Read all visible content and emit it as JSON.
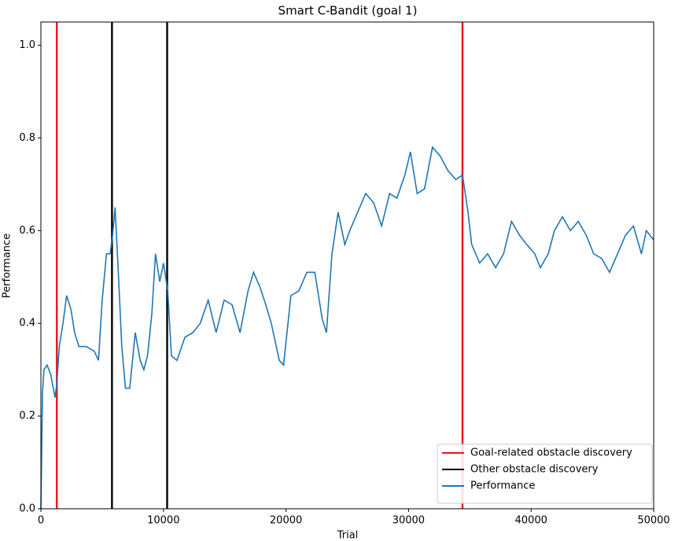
{
  "chart_data": {
    "type": "line",
    "title": "Smart C-Bandit (goal 1)",
    "xlabel": "Trial",
    "ylabel": "Performance",
    "x": [
      0,
      130,
      250,
      500,
      800,
      1150,
      1300,
      1500,
      1800,
      2100,
      2450,
      2750,
      3100,
      3700,
      4350,
      4700,
      5000,
      5350,
      5650,
      5850,
      6050,
      6300,
      6600,
      6900,
      7250,
      7700,
      8100,
      8400,
      8700,
      9050,
      9350,
      9700,
      10000,
      10350,
      10650,
      11100,
      11750,
      12400,
      13000,
      13650,
      14300,
      14950,
      15600,
      16250,
      16900,
      17350,
      17850,
      18350,
      18800,
      19450,
      19800,
      20400,
      21050,
      21700,
      22350,
      22950,
      23300,
      23750,
      24250,
      24800,
      25200,
      25850,
      26500,
      27150,
      27800,
      28450,
      29050,
      29700,
      30150,
      30700,
      31300,
      31950,
      32600,
      33200,
      33850,
      34400,
      34850,
      35150,
      35800,
      36450,
      37100,
      37750,
      38400,
      39050,
      39650,
      40300,
      40750,
      41400,
      41900,
      42550,
      43200,
      43850,
      44500,
      45100,
      45750,
      46400,
      47050,
      47700,
      48350,
      49000,
      49400,
      50000
    ],
    "series": [
      {
        "name": "Performance",
        "color": "#1f77b4",
        "values": [
          0,
          0.25,
          0.3,
          0.31,
          0.29,
          0.24,
          0.27,
          0.35,
          0.4,
          0.46,
          0.43,
          0.38,
          0.35,
          0.35,
          0.34,
          0.32,
          0.45,
          0.55,
          0.55,
          0.59,
          0.65,
          0.52,
          0.35,
          0.26,
          0.26,
          0.38,
          0.32,
          0.3,
          0.33,
          0.42,
          0.55,
          0.49,
          0.53,
          0.47,
          0.33,
          0.32,
          0.37,
          0.38,
          0.4,
          0.45,
          0.38,
          0.45,
          0.44,
          0.38,
          0.47,
          0.51,
          0.48,
          0.44,
          0.4,
          0.32,
          0.31,
          0.46,
          0.47,
          0.51,
          0.51,
          0.41,
          0.38,
          0.55,
          0.64,
          0.57,
          0.6,
          0.64,
          0.68,
          0.66,
          0.61,
          0.68,
          0.67,
          0.72,
          0.77,
          0.68,
          0.69,
          0.78,
          0.76,
          0.73,
          0.71,
          0.72,
          0.64,
          0.57,
          0.53,
          0.55,
          0.52,
          0.55,
          0.62,
          0.59,
          0.57,
          0.55,
          0.52,
          0.55,
          0.6,
          0.63,
          0.6,
          0.62,
          0.59,
          0.55,
          0.54,
          0.51,
          0.55,
          0.59,
          0.61,
          0.55,
          0.6,
          0.58
        ]
      }
    ],
    "vlines": [
      {
        "name": "Goal-related obstacle discovery",
        "color": "#e8141c",
        "x": [
          1300,
          34400
        ]
      },
      {
        "name": "Other obstacle discovery",
        "color": "#000000",
        "x": [
          5800,
          10300
        ]
      }
    ],
    "xlim": [
      0,
      50000
    ],
    "xticks": [
      0,
      10000,
      20000,
      30000,
      40000,
      50000
    ],
    "ylim": [
      0,
      1.05
    ],
    "yticks": [
      {
        "value": 0,
        "label": "0.0"
      },
      0.2,
      0.4,
      0.6,
      0.8,
      {
        "value": 1,
        "label": "1.0"
      }
    ],
    "legend": "lower right",
    "grid": false
  }
}
